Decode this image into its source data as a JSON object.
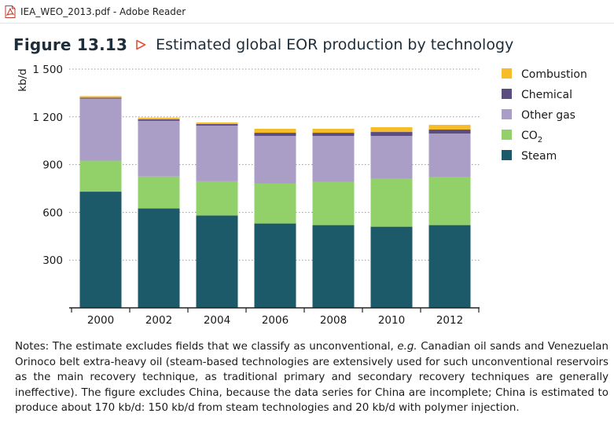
{
  "window": {
    "title": "IEA_WEO_2013.pdf - Adobe Reader",
    "icon": "pdf-file-icon"
  },
  "figure": {
    "label": "Figure 13.13",
    "title": "Estimated global EOR production by technology"
  },
  "chart_data": {
    "type": "bar",
    "stacked": true,
    "categories": [
      "2000",
      "2002",
      "2004",
      "2006",
      "2008",
      "2010",
      "2012"
    ],
    "ylabel": "kb/d",
    "ylim": [
      0,
      1500
    ],
    "yticks": [
      300,
      600,
      900,
      1200,
      1500
    ],
    "ytick_labels": [
      "300",
      "600",
      "900",
      "1 200",
      "1 500"
    ],
    "grid": "dotted-horizontal",
    "legend_position": "right",
    "series": [
      {
        "name": "Steam",
        "color": "#1d5a69",
        "values": [
          730,
          625,
          580,
          530,
          520,
          510,
          520
        ]
      },
      {
        "name": "CO2",
        "color": "#92d06a",
        "values": [
          195,
          200,
          215,
          250,
          270,
          300,
          300
        ]
      },
      {
        "name": "Other gas",
        "color": "#aa9ec6",
        "values": [
          390,
          350,
          350,
          300,
          290,
          270,
          275
        ]
      },
      {
        "name": "Chemical",
        "color": "#5b4d80",
        "values": [
          5,
          10,
          10,
          20,
          20,
          25,
          25
        ]
      },
      {
        "name": "Combustion",
        "color": "#f6bc2a",
        "values": [
          10,
          10,
          10,
          25,
          25,
          30,
          30
        ]
      }
    ],
    "legend": {
      "order": [
        "Combustion",
        "Chemical",
        "Other gas",
        "CO2",
        "Steam"
      ],
      "labels": {
        "Combustion": "Combustion",
        "Chemical": "Chemical",
        "Other gas": "Other gas",
        "CO2": "CO",
        "Steam": "Steam"
      },
      "CO2_subscript": "2"
    }
  },
  "notes": {
    "text_before_eg": "Notes: The estimate excludes fields that we classify as unconventional, ",
    "eg": "e.g.",
    "text_after_eg": " Canadian oil sands and Venezuelan Orinoco belt extra-heavy oil (steam-based technologies are extensively used for such unconventional reservoirs as the main recovery technique, as traditional primary and secondary recovery techniques are generally ineffective). The figure excludes China, because the data series for China are incomplete; China is estimated to produce about 170 kb/d: 150 kb/d from steam technologies and 20 kb/d with polymer injection."
  }
}
